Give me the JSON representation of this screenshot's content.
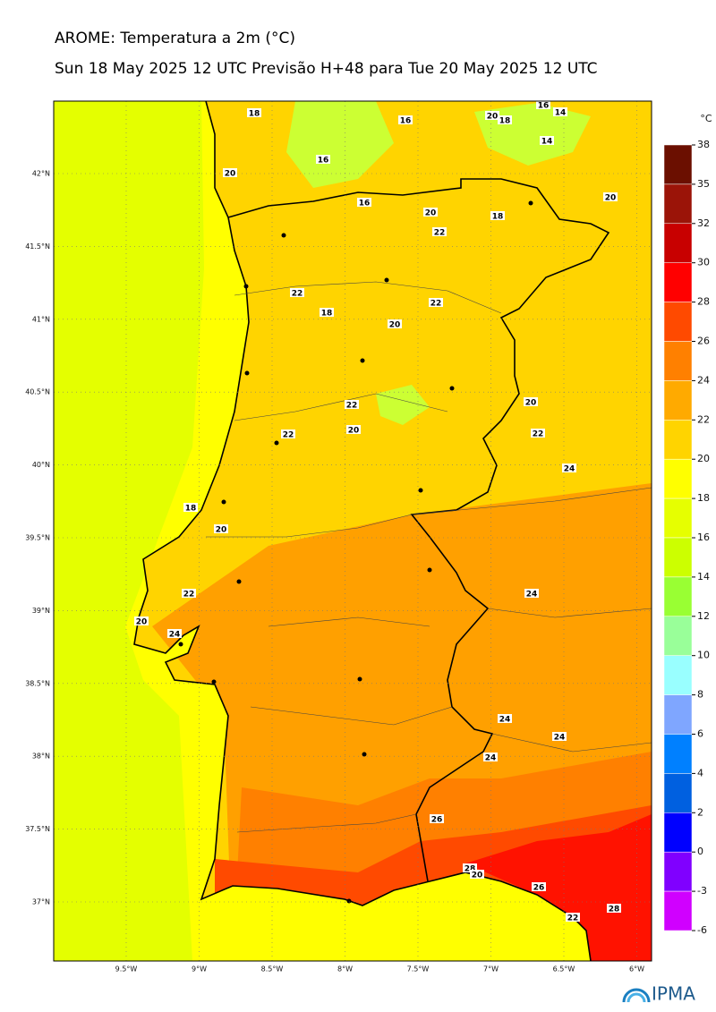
{
  "header": {
    "title": "AROME: Temperatura a 2m (°C)",
    "subtitle": "Sun 18 May 2025 12 UTC Previsão H+48 para Tue 20 May 2025 12 UTC"
  },
  "map": {
    "lon_ticks": [
      {
        "value": -9.5,
        "label": "9.5°W"
      },
      {
        "value": -9,
        "label": "9°W"
      },
      {
        "value": -8.5,
        "label": "8.5°W"
      },
      {
        "value": -8,
        "label": "8°W"
      },
      {
        "value": -7.5,
        "label": "7.5°W"
      },
      {
        "value": -7,
        "label": "7°W"
      },
      {
        "value": -6.5,
        "label": "6.5°W"
      },
      {
        "value": -6,
        "label": "6°W"
      }
    ],
    "lat_ticks": [
      {
        "value": 42,
        "label": "42°N"
      },
      {
        "value": 41.5,
        "label": "41.5°N"
      },
      {
        "value": 41,
        "label": "41°N"
      },
      {
        "value": 40.5,
        "label": "40.5°N"
      },
      {
        "value": 40,
        "label": "40°N"
      },
      {
        "value": 39.5,
        "label": "39.5°N"
      },
      {
        "value": 39,
        "label": "39°N"
      },
      {
        "value": 38.5,
        "label": "38.5°N"
      },
      {
        "value": 38,
        "label": "38°N"
      },
      {
        "value": 37.5,
        "label": "37.5°N"
      },
      {
        "value": 37,
        "label": "37°N"
      }
    ],
    "contour_labels": [
      18,
      16,
      20,
      18,
      16,
      14,
      14,
      16,
      20,
      16,
      20,
      18,
      20,
      22,
      22,
      22,
      18,
      20,
      22,
      20,
      22,
      20,
      22,
      24,
      18,
      20,
      24,
      22,
      20,
      24,
      24,
      24,
      24,
      26,
      28,
      20,
      26,
      22,
      28
    ]
  },
  "colorbar": {
    "unit": "°C",
    "ticks": [
      38,
      35,
      32,
      30,
      28,
      26,
      24,
      22,
      20,
      18,
      16,
      14,
      12,
      10,
      8,
      6,
      4,
      2,
      0,
      -3,
      -6
    ],
    "colors": [
      "#6b0f00",
      "#9b1408",
      "#c80000",
      "#ff0000",
      "#ff4a00",
      "#ff8000",
      "#ffaa00",
      "#ffd400",
      "#ffff00",
      "#e6ff00",
      "#ccff00",
      "#99ff33",
      "#99ff99",
      "#99ffff",
      "#7fa6ff",
      "#0080ff",
      "#0060e0",
      "#0000ff",
      "#8000ff",
      "#d000ff"
    ]
  },
  "logo": "IPMA"
}
